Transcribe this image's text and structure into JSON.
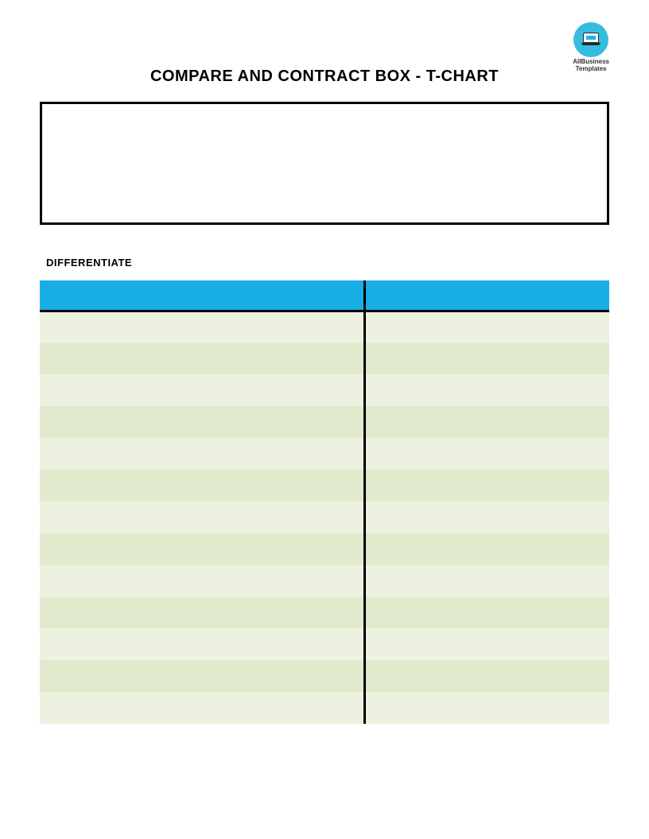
{
  "logo": {
    "circle_color": "#35bde0",
    "line1": "AllBusiness",
    "line2": "Templates"
  },
  "title": "COMPARE AND CONTRACT BOX - T-CHART",
  "section_label": "DIFFERENTIATE",
  "tchart": {
    "header_color": "#18aee5",
    "row_color_a": "#edf2e0",
    "row_color_b": "#e2eacd",
    "row_count": 13,
    "left_width_pct": 57,
    "right_width_pct": 43
  }
}
